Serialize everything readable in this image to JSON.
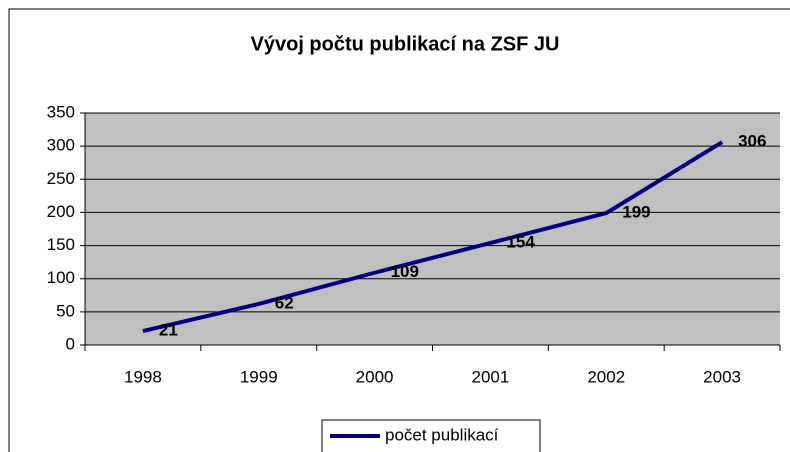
{
  "chart_data": {
    "type": "line",
    "title": "Vývoj počtu publikací na ZSF JU",
    "categories": [
      "1998",
      "1999",
      "2000",
      "2001",
      "2002",
      "2003"
    ],
    "series": [
      {
        "name": "počet publikací",
        "color": "#000080",
        "values": [
          21,
          62,
          109,
          154,
          199,
          306
        ]
      }
    ],
    "ylim": [
      0,
      350
    ],
    "yticks": [
      0,
      50,
      100,
      150,
      200,
      250,
      300,
      350
    ],
    "grid": true,
    "legend": "bottom"
  }
}
